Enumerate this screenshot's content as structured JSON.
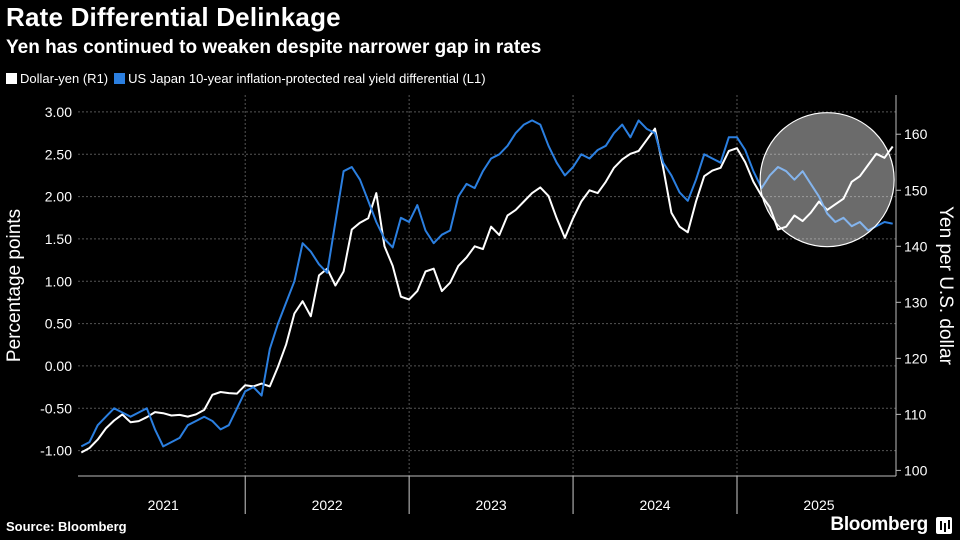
{
  "header": {
    "title": "Rate Differential Delinkage",
    "subtitle": "Yen has continued to weaken despite narrower gap in rates"
  },
  "legend": [
    {
      "label": "Dollar-yen (R1)",
      "color": "#ffffff"
    },
    {
      "label": "US Japan 10-year inflation-protected real yield differential (L1)",
      "color": "#2b7fe0"
    }
  ],
  "footer": {
    "source": "Source: Bloomberg",
    "brand": "Bloomberg"
  },
  "chart_data": {
    "type": "line",
    "title": "Rate Differential Delinkage",
    "subtitle": "Yen has continued to weaken despite narrower gap in rates",
    "y_left": {
      "label": "Percentage points",
      "range": [
        -1.3,
        3.2
      ],
      "ticks": [
        "3.00",
        "2.50",
        "2.00",
        "1.50",
        "1.00",
        "0.50",
        "0.00",
        "-0.50",
        "-1.00"
      ],
      "tick_values": [
        3.0,
        2.5,
        2.0,
        1.5,
        1.0,
        0.5,
        0.0,
        -0.5,
        -1.0
      ]
    },
    "y_right": {
      "label": "Yen per U.S. dollar",
      "range": [
        99,
        167
      ],
      "ticks": [
        "160",
        "150",
        "140",
        "130",
        "120",
        "110",
        "100"
      ],
      "tick_values": [
        160,
        150,
        140,
        130,
        120,
        110,
        100
      ]
    },
    "x_axis": {
      "range": [
        2020.98,
        2025.97
      ],
      "year_labels": [
        "2021",
        "2022",
        "2023",
        "2024",
        "2025"
      ],
      "year_centers": [
        2021.5,
        2022.5,
        2023.5,
        2024.5,
        2025.5
      ],
      "year_boundaries": [
        2022,
        2023,
        2024,
        2025
      ]
    },
    "grid": true,
    "legend_position": "top-left",
    "highlight": {
      "shape": "circle",
      "x": 2025.55,
      "y_left": 2.2
    },
    "series": [
      {
        "name": "Dollar-yen (R1)",
        "axis": "right",
        "color": "#ffffff",
        "points": [
          [
            2021.0,
            103.2
          ],
          [
            2021.05,
            104.0
          ],
          [
            2021.1,
            105.5
          ],
          [
            2021.15,
            107.5
          ],
          [
            2021.2,
            108.9
          ],
          [
            2021.25,
            110.0
          ],
          [
            2021.3,
            108.6
          ],
          [
            2021.35,
            108.8
          ],
          [
            2021.4,
            109.5
          ],
          [
            2021.45,
            110.4
          ],
          [
            2021.5,
            110.2
          ],
          [
            2021.55,
            109.8
          ],
          [
            2021.6,
            109.9
          ],
          [
            2021.65,
            109.6
          ],
          [
            2021.7,
            110.0
          ],
          [
            2021.75,
            110.8
          ],
          [
            2021.8,
            113.5
          ],
          [
            2021.85,
            114.0
          ],
          [
            2021.9,
            113.8
          ],
          [
            2021.95,
            113.7
          ],
          [
            2022.0,
            115.2
          ],
          [
            2022.05,
            115.0
          ],
          [
            2022.1,
            115.5
          ],
          [
            2022.15,
            115.0
          ],
          [
            2022.2,
            118.5
          ],
          [
            2022.25,
            122.5
          ],
          [
            2022.3,
            128.0
          ],
          [
            2022.35,
            130.2
          ],
          [
            2022.4,
            127.5
          ],
          [
            2022.45,
            134.8
          ],
          [
            2022.5,
            136.0
          ],
          [
            2022.55,
            133.0
          ],
          [
            2022.6,
            135.5
          ],
          [
            2022.65,
            143.0
          ],
          [
            2022.7,
            144.2
          ],
          [
            2022.75,
            145.0
          ],
          [
            2022.8,
            149.5
          ],
          [
            2022.85,
            140.0
          ],
          [
            2022.9,
            136.5
          ],
          [
            2022.95,
            131.0
          ],
          [
            2023.0,
            130.5
          ],
          [
            2023.05,
            132.0
          ],
          [
            2023.1,
            135.5
          ],
          [
            2023.15,
            136.0
          ],
          [
            2023.2,
            132.0
          ],
          [
            2023.25,
            133.5
          ],
          [
            2023.3,
            136.5
          ],
          [
            2023.35,
            138.0
          ],
          [
            2023.4,
            140.0
          ],
          [
            2023.45,
            139.5
          ],
          [
            2023.5,
            143.5
          ],
          [
            2023.55,
            142.0
          ],
          [
            2023.6,
            145.5
          ],
          [
            2023.65,
            146.5
          ],
          [
            2023.7,
            148.0
          ],
          [
            2023.75,
            149.5
          ],
          [
            2023.8,
            150.5
          ],
          [
            2023.85,
            149.0
          ],
          [
            2023.9,
            145.0
          ],
          [
            2023.95,
            141.5
          ],
          [
            2024.0,
            145.0
          ],
          [
            2024.05,
            148.0
          ],
          [
            2024.1,
            150.0
          ],
          [
            2024.15,
            149.5
          ],
          [
            2024.2,
            151.5
          ],
          [
            2024.25,
            154.0
          ],
          [
            2024.3,
            155.5
          ],
          [
            2024.35,
            156.5
          ],
          [
            2024.4,
            157.0
          ],
          [
            2024.45,
            159.0
          ],
          [
            2024.5,
            161.0
          ],
          [
            2024.55,
            154.0
          ],
          [
            2024.6,
            146.0
          ],
          [
            2024.65,
            143.5
          ],
          [
            2024.7,
            142.5
          ],
          [
            2024.75,
            148.0
          ],
          [
            2024.8,
            152.5
          ],
          [
            2024.85,
            153.5
          ],
          [
            2024.9,
            154.0
          ],
          [
            2024.95,
            157.0
          ],
          [
            2025.0,
            157.5
          ],
          [
            2025.05,
            155.0
          ],
          [
            2025.1,
            151.5
          ],
          [
            2025.15,
            149.0
          ],
          [
            2025.2,
            147.0
          ],
          [
            2025.25,
            143.0
          ],
          [
            2025.3,
            143.5
          ],
          [
            2025.35,
            145.5
          ],
          [
            2025.4,
            144.5
          ],
          [
            2025.45,
            146.0
          ],
          [
            2025.5,
            148.0
          ],
          [
            2025.55,
            146.5
          ],
          [
            2025.6,
            147.5
          ],
          [
            2025.65,
            148.5
          ],
          [
            2025.7,
            151.5
          ],
          [
            2025.75,
            152.5
          ],
          [
            2025.8,
            154.5
          ],
          [
            2025.85,
            156.5
          ],
          [
            2025.9,
            155.8
          ],
          [
            2025.95,
            157.8
          ]
        ]
      },
      {
        "name": "US Japan 10-year inflation-protected real yield differential (L1)",
        "axis": "left",
        "color": "#2b7fe0",
        "points": [
          [
            2021.0,
            -0.95
          ],
          [
            2021.05,
            -0.9
          ],
          [
            2021.1,
            -0.7
          ],
          [
            2021.15,
            -0.6
          ],
          [
            2021.2,
            -0.5
          ],
          [
            2021.25,
            -0.55
          ],
          [
            2021.3,
            -0.6
          ],
          [
            2021.35,
            -0.55
          ],
          [
            2021.4,
            -0.5
          ],
          [
            2021.45,
            -0.75
          ],
          [
            2021.5,
            -0.95
          ],
          [
            2021.55,
            -0.9
          ],
          [
            2021.6,
            -0.85
          ],
          [
            2021.65,
            -0.7
          ],
          [
            2021.7,
            -0.65
          ],
          [
            2021.75,
            -0.6
          ],
          [
            2021.8,
            -0.65
          ],
          [
            2021.85,
            -0.75
          ],
          [
            2021.9,
            -0.7
          ],
          [
            2021.95,
            -0.5
          ],
          [
            2022.0,
            -0.3
          ],
          [
            2022.05,
            -0.25
          ],
          [
            2022.1,
            -0.35
          ],
          [
            2022.15,
            0.2
          ],
          [
            2022.2,
            0.5
          ],
          [
            2022.25,
            0.75
          ],
          [
            2022.3,
            1.0
          ],
          [
            2022.35,
            1.45
          ],
          [
            2022.4,
            1.35
          ],
          [
            2022.45,
            1.2
          ],
          [
            2022.5,
            1.1
          ],
          [
            2022.55,
            1.7
          ],
          [
            2022.6,
            2.3
          ],
          [
            2022.65,
            2.35
          ],
          [
            2022.7,
            2.2
          ],
          [
            2022.75,
            1.95
          ],
          [
            2022.8,
            1.7
          ],
          [
            2022.85,
            1.5
          ],
          [
            2022.9,
            1.4
          ],
          [
            2022.95,
            1.75
          ],
          [
            2023.0,
            1.7
          ],
          [
            2023.05,
            1.9
          ],
          [
            2023.1,
            1.6
          ],
          [
            2023.15,
            1.45
          ],
          [
            2023.2,
            1.55
          ],
          [
            2023.25,
            1.6
          ],
          [
            2023.3,
            2.0
          ],
          [
            2023.35,
            2.15
          ],
          [
            2023.4,
            2.1
          ],
          [
            2023.45,
            2.3
          ],
          [
            2023.5,
            2.45
          ],
          [
            2023.55,
            2.5
          ],
          [
            2023.6,
            2.6
          ],
          [
            2023.65,
            2.75
          ],
          [
            2023.7,
            2.85
          ],
          [
            2023.75,
            2.9
          ],
          [
            2023.8,
            2.85
          ],
          [
            2023.85,
            2.6
          ],
          [
            2023.9,
            2.4
          ],
          [
            2023.95,
            2.25
          ],
          [
            2024.0,
            2.35
          ],
          [
            2024.05,
            2.5
          ],
          [
            2024.1,
            2.45
          ],
          [
            2024.15,
            2.55
          ],
          [
            2024.2,
            2.6
          ],
          [
            2024.25,
            2.75
          ],
          [
            2024.3,
            2.85
          ],
          [
            2024.35,
            2.7
          ],
          [
            2024.4,
            2.9
          ],
          [
            2024.45,
            2.8
          ],
          [
            2024.5,
            2.75
          ],
          [
            2024.55,
            2.4
          ],
          [
            2024.6,
            2.25
          ],
          [
            2024.65,
            2.05
          ],
          [
            2024.7,
            1.95
          ],
          [
            2024.75,
            2.2
          ],
          [
            2024.8,
            2.5
          ],
          [
            2024.85,
            2.45
          ],
          [
            2024.9,
            2.4
          ],
          [
            2024.95,
            2.7
          ],
          [
            2025.0,
            2.7
          ],
          [
            2025.05,
            2.55
          ],
          [
            2025.1,
            2.3
          ],
          [
            2025.15,
            2.1
          ],
          [
            2025.2,
            2.25
          ],
          [
            2025.25,
            2.35
          ],
          [
            2025.3,
            2.3
          ],
          [
            2025.35,
            2.2
          ],
          [
            2025.4,
            2.3
          ],
          [
            2025.45,
            2.15
          ],
          [
            2025.5,
            2.0
          ],
          [
            2025.55,
            1.8
          ],
          [
            2025.6,
            1.7
          ],
          [
            2025.65,
            1.75
          ],
          [
            2025.7,
            1.65
          ],
          [
            2025.75,
            1.7
          ],
          [
            2025.8,
            1.6
          ],
          [
            2025.85,
            1.65
          ],
          [
            2025.9,
            1.7
          ],
          [
            2025.95,
            1.68
          ]
        ]
      }
    ]
  }
}
